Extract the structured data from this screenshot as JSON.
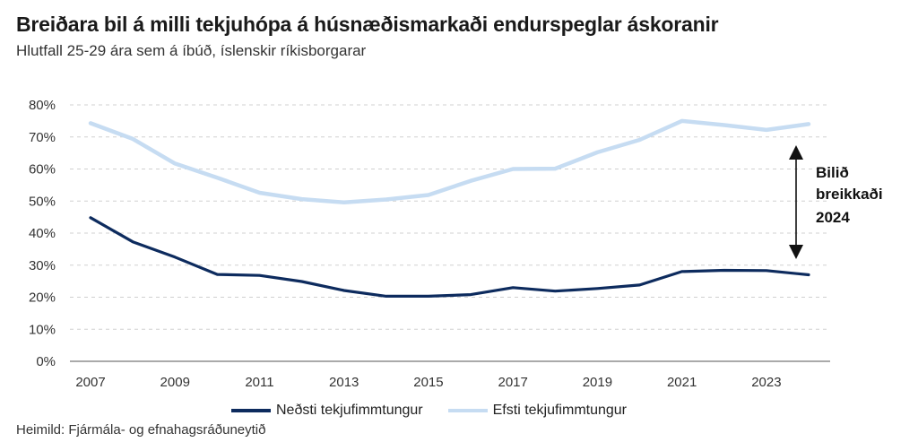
{
  "title": "Breiðara bil á milli tekjuhópa á húsnæðismarkaði endurspeglar áskoranir",
  "subtitle": "Hlutfall 25-29 ára sem á íbúð, íslenskir ríkisborgarar",
  "source": "Heimild: Fjármála- og efnahagsráðuneytið",
  "annotation": [
    "Bilið",
    "breikkaði",
    "2024"
  ],
  "chart_data": {
    "type": "line",
    "x": [
      2007,
      2008,
      2009,
      2010,
      2011,
      2012,
      2013,
      2014,
      2015,
      2016,
      2017,
      2018,
      2019,
      2020,
      2021,
      2022,
      2023,
      2024
    ],
    "x_tick_labels": [
      "2007",
      "2009",
      "2011",
      "2013",
      "2015",
      "2017",
      "2019",
      "2021",
      "2023"
    ],
    "y_tick_labels": [
      "0%",
      "10%",
      "20%",
      "30%",
      "40%",
      "50%",
      "60%",
      "70%",
      "80%"
    ],
    "ylim": [
      0,
      80
    ],
    "grid": "horizontal dashed",
    "legend_position": "bottom",
    "series": [
      {
        "name": "Neðsti tekjufimmtungur",
        "color": "#0d2b5e",
        "values": [
          44.8,
          37.3,
          32.5,
          27.1,
          26.8,
          24.9,
          22.1,
          20.3,
          20.3,
          20.8,
          23.0,
          21.9,
          22.7,
          23.8,
          28.0,
          28.4,
          28.3,
          27.0
        ]
      },
      {
        "name": "Efsti tekjufimmtungur",
        "color": "#c6dcf2",
        "values": [
          74.3,
          69.4,
          61.7,
          57.3,
          52.6,
          50.6,
          49.6,
          50.5,
          51.9,
          56.3,
          60.0,
          60.1,
          65.2,
          69.1,
          75.0,
          73.7,
          72.2,
          74.0
        ]
      }
    ]
  }
}
